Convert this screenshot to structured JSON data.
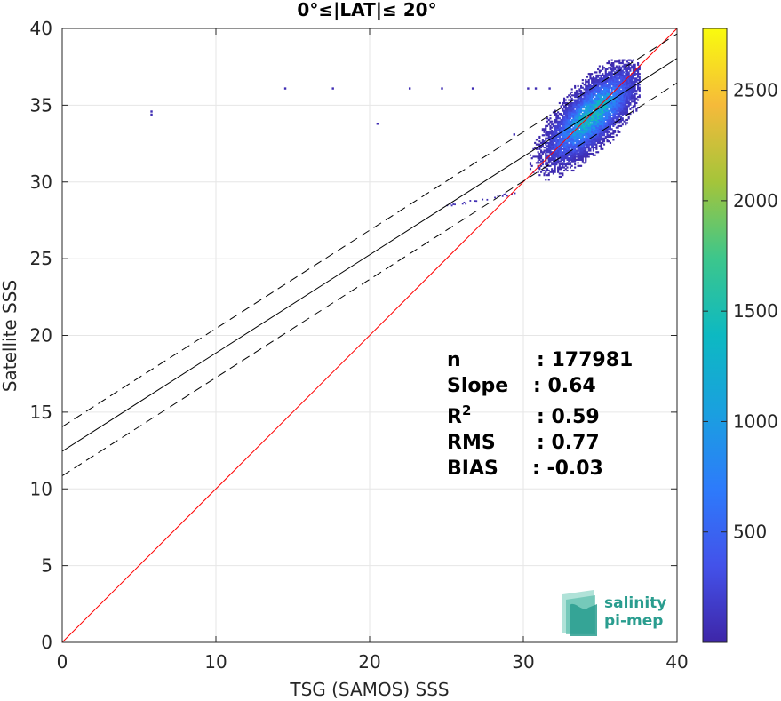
{
  "chart_data": {
    "type": "heatmap",
    "title": "0°≤|LAT|≤ 20°",
    "xlabel": "TSG (SAMOS) SSS",
    "ylabel": "Satellite SSS",
    "xlim": [
      0,
      40
    ],
    "ylim": [
      0,
      40
    ],
    "xticks": [
      0,
      10,
      20,
      30,
      40
    ],
    "yticks": [
      0,
      5,
      10,
      15,
      20,
      25,
      30,
      35,
      40
    ],
    "grid": true,
    "colorbar": {
      "min": 0,
      "max": 2780,
      "ticks": [
        500,
        1000,
        1500,
        2000,
        2500
      ],
      "colormap": "parula"
    },
    "lines": [
      {
        "name": "identity",
        "slope": 1.0,
        "intercept": 0.0,
        "color": "#ff0000",
        "style": "solid"
      },
      {
        "name": "regression",
        "slope": 0.64,
        "intercept": 12.45,
        "color": "#000000",
        "style": "solid"
      },
      {
        "name": "regression-upper",
        "slope": 0.64,
        "intercept": 14.05,
        "color": "#000000",
        "style": "dashed"
      },
      {
        "name": "regression-lower",
        "slope": 0.64,
        "intercept": 10.85,
        "color": "#000000",
        "style": "dashed"
      }
    ],
    "density_cluster": {
      "center": [
        34.4,
        34.3
      ],
      "major_axis_direction": [
        1.0,
        1.05
      ],
      "major_spread": 2.3,
      "minor_spread": 0.9,
      "peak_count": 1500
    },
    "outliers": [
      {
        "x": 5.8,
        "y": 34.4
      },
      {
        "x": 5.8,
        "y": 34.6
      },
      {
        "x": 14.5,
        "y": 36.1
      },
      {
        "x": 17.6,
        "y": 36.1
      },
      {
        "x": 22.6,
        "y": 36.1
      },
      {
        "x": 24.7,
        "y": 36.1
      },
      {
        "x": 26.7,
        "y": 36.1
      },
      {
        "x": 30.3,
        "y": 36.1
      },
      {
        "x": 30.8,
        "y": 36.1
      },
      {
        "x": 31.7,
        "y": 36.1
      },
      {
        "x": 20.5,
        "y": 33.8
      },
      {
        "x": 29.4,
        "y": 33.1
      }
    ],
    "stats": [
      {
        "label": "n",
        "value": ": 177981"
      },
      {
        "label": "Slope",
        "value": ": 0.64"
      },
      {
        "label": "R",
        "sup": "2",
        "value": ": 0.59"
      },
      {
        "label": "RMS",
        "value": ": 0.77"
      },
      {
        "label": "BIAS",
        "value": ": -0.03"
      }
    ]
  },
  "logo": {
    "line1": "salinity",
    "line2": "pi-mep",
    "color": "#2a9d8f"
  }
}
